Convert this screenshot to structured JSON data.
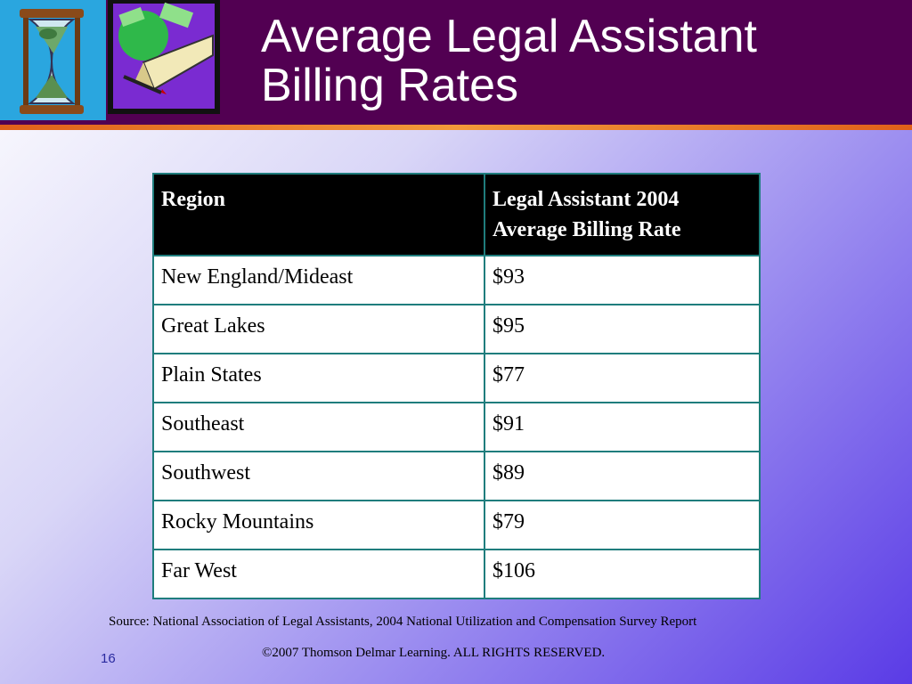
{
  "slide": {
    "title_line1": "Average Legal Assistant",
    "title_line2": "Billing Rates",
    "table": {
      "headers": [
        "Region",
        "Legal Assistant 2004",
        "Average Billing Rate"
      ],
      "rows": [
        {
          "region": "New England/Mideast",
          "rate": "$93"
        },
        {
          "region": "Great Lakes",
          "rate": "$95"
        },
        {
          "region": "Plain States",
          "rate": "$77"
        },
        {
          "region": "Southeast",
          "rate": "$91"
        },
        {
          "region": "Southwest",
          "rate": "$89"
        },
        {
          "region": "Rocky Mountains",
          "rate": "$79"
        },
        {
          "region": "Far West",
          "rate": "$106"
        }
      ]
    },
    "source": "Source:  National Association of Legal Assistants, 2004 National Utilization and Compensation Survey Report",
    "copyright": "©2007 Thomson Delmar Learning. ALL RIGHTS RESERVED.",
    "page_number": "16"
  },
  "colors": {
    "header_bg": "#520052",
    "accent_line": "#f39a3a",
    "table_border": "#1f7d7d"
  },
  "icons": [
    "hourglass-money-clipart",
    "money-book-pen-clipart"
  ]
}
